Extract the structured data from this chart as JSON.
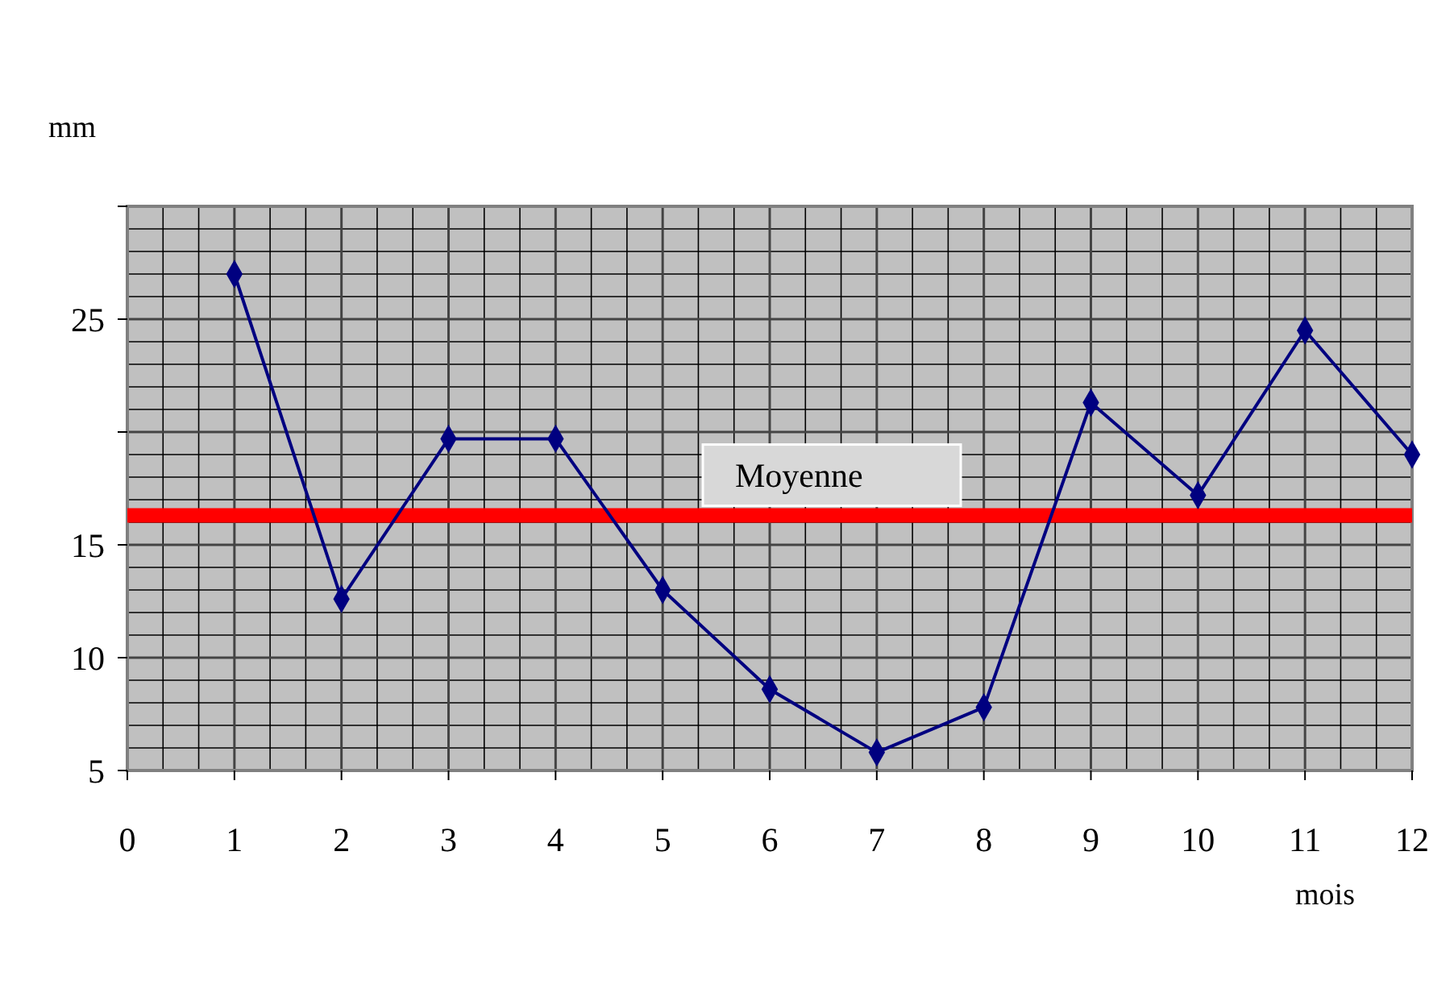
{
  "chart_data": {
    "type": "line",
    "xlabel": "mois",
    "ylabel": "mm",
    "x": [
      1,
      2,
      3,
      4,
      5,
      6,
      7,
      8,
      9,
      10,
      11,
      12
    ],
    "series": [
      {
        "color": "#000080",
        "values": [
          27.0,
          12.6,
          19.7,
          19.7,
          13.0,
          8.6,
          5.8,
          7.8,
          21.3,
          17.2,
          24.5,
          19.0
        ]
      }
    ],
    "xlim": [
      0,
      12
    ],
    "xticks": [
      0,
      1,
      2,
      3,
      4,
      5,
      6,
      7,
      8,
      9,
      10,
      11,
      12
    ],
    "ylim": [
      5,
      30
    ],
    "yticks": [
      5,
      10,
      15,
      {
        "value": 20,
        "label": null
      },
      25,
      {
        "value": 30,
        "label": null
      }
    ],
    "ref_lines": [
      {
        "axis": "y",
        "value": 16.3,
        "label": "Moyenne",
        "color": "#ff0000"
      }
    ],
    "grid": true,
    "marker": "diamond",
    "line_style": "solid"
  }
}
